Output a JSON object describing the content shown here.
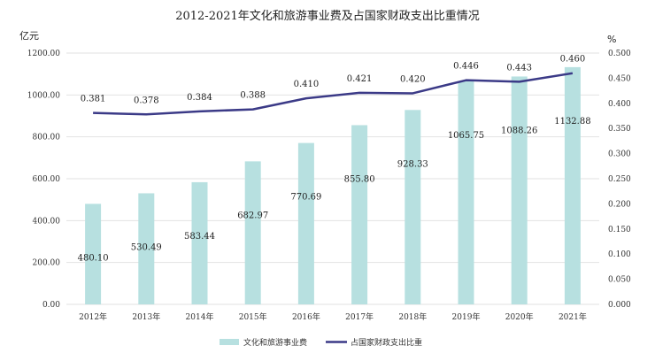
{
  "chart_data": {
    "type": "bar+line",
    "title": "2012-2021年文化和旅游事业费及占国家财政支出比重情况",
    "categories": [
      "2012年",
      "2013年",
      "2014年",
      "2015年",
      "2016年",
      "2017年",
      "2018年",
      "2019年",
      "2020年",
      "2021年"
    ],
    "series": [
      {
        "name": "文化和旅游事业费",
        "type": "bar",
        "axis": "left",
        "values": [
          480.1,
          530.49,
          583.44,
          682.97,
          770.69,
          855.8,
          928.33,
          1065.75,
          1088.26,
          1132.88
        ],
        "labels": [
          "480.10",
          "530.49",
          "583.44",
          "682.97",
          "770.69",
          "855.80",
          "928.33",
          "1065.75",
          "1088.26",
          "1132.88"
        ],
        "color": "#b7e0e0"
      },
      {
        "name": "占国家财政支出比重",
        "type": "line",
        "axis": "right",
        "values": [
          0.381,
          0.378,
          0.384,
          0.388,
          0.41,
          0.421,
          0.42,
          0.446,
          0.443,
          0.46
        ],
        "labels": [
          "0.381",
          "0.378",
          "0.384",
          "0.388",
          "0.410",
          "0.421",
          "0.420",
          "0.446",
          "0.443",
          "0.460"
        ],
        "color": "#3b3a87"
      }
    ],
    "left_axis": {
      "unit": "亿元",
      "ylim": [
        0,
        1200
      ],
      "ticks": [
        "0.00",
        "200.00",
        "400.00",
        "600.00",
        "800.00",
        "1000.00",
        "1200.00"
      ]
    },
    "right_axis": {
      "unit": "%",
      "ylim": [
        0,
        0.5
      ],
      "ticks": [
        "0.000",
        "0.050",
        "0.100",
        "0.150",
        "0.200",
        "0.250",
        "0.300",
        "0.350",
        "0.400",
        "0.450",
        "0.500"
      ]
    },
    "grid": true,
    "legend": "bottom"
  }
}
